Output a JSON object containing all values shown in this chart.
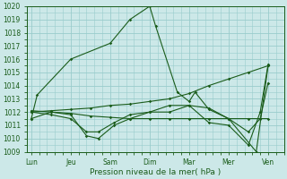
{
  "xlabel": "Pression niveau de la mer( hPa )",
  "bg_color": "#cce8e8",
  "grid_color": "#99cccc",
  "line_color": "#1a5c1a",
  "ylim": [
    1009,
    1020
  ],
  "yticks": [
    1009,
    1010,
    1011,
    1012,
    1013,
    1014,
    1015,
    1016,
    1017,
    1018,
    1019,
    1020
  ],
  "xtick_labels": [
    "Lun",
    "Jeu",
    "Sam",
    "Dim",
    "Mar",
    "Mer",
    "Ven"
  ],
  "xtick_positions": [
    0,
    1,
    2,
    3,
    4,
    5,
    6
  ],
  "xlim": [
    -0.1,
    6.4
  ],
  "series": [
    {
      "x": [
        0,
        0.15,
        1.0,
        2.0,
        2.5,
        3.0,
        3.15,
        3.7,
        4.0,
        4.15,
        4.5,
        5.0,
        5.7,
        6.0
      ],
      "y": [
        1011.5,
        1013.3,
        1016.0,
        1017.2,
        1019.0,
        1020.0,
        1018.5,
        1013.5,
        1012.8,
        1013.5,
        1012.2,
        1011.5,
        1009.0,
        1015.5
      ]
    },
    {
      "x": [
        0,
        0.5,
        1.0,
        1.5,
        2.0,
        2.5,
        3.0,
        3.5,
        4.0,
        4.5,
        5.0,
        5.5,
        6.0
      ],
      "y": [
        1012.1,
        1012.0,
        1011.9,
        1011.7,
        1011.6,
        1011.5,
        1011.5,
        1011.5,
        1011.5,
        1011.5,
        1011.5,
        1011.5,
        1011.5
      ]
    },
    {
      "x": [
        0,
        0.5,
        1.0,
        1.5,
        2.0,
        2.5,
        3.0,
        3.5,
        4.0,
        4.5,
        5.0,
        5.5,
        6.0
      ],
      "y": [
        1012.0,
        1012.1,
        1012.2,
        1012.3,
        1012.5,
        1012.6,
        1012.8,
        1013.0,
        1013.4,
        1014.0,
        1014.5,
        1015.0,
        1015.5
      ]
    },
    {
      "x": [
        0,
        0.5,
        1.0,
        1.4,
        1.7,
        2.1,
        2.5,
        3.0,
        3.5,
        4.0,
        4.5,
        5.0,
        5.5,
        5.8,
        6.0
      ],
      "y": [
        1012.0,
        1011.8,
        1011.5,
        1010.5,
        1010.5,
        1011.2,
        1011.8,
        1012.0,
        1012.0,
        1012.5,
        1012.3,
        1011.5,
        1010.5,
        1011.5,
        1014.2
      ]
    },
    {
      "x": [
        0,
        0.5,
        1.0,
        1.4,
        1.7,
        2.1,
        2.5,
        3.0,
        3.5,
        4.0,
        4.5,
        5.0,
        5.5,
        5.8,
        6.0
      ],
      "y": [
        1011.5,
        1012.0,
        1011.8,
        1010.2,
        1010.0,
        1011.0,
        1011.5,
        1012.0,
        1012.5,
        1012.5,
        1011.2,
        1011.0,
        1009.5,
        1012.0,
        1015.6
      ]
    }
  ]
}
